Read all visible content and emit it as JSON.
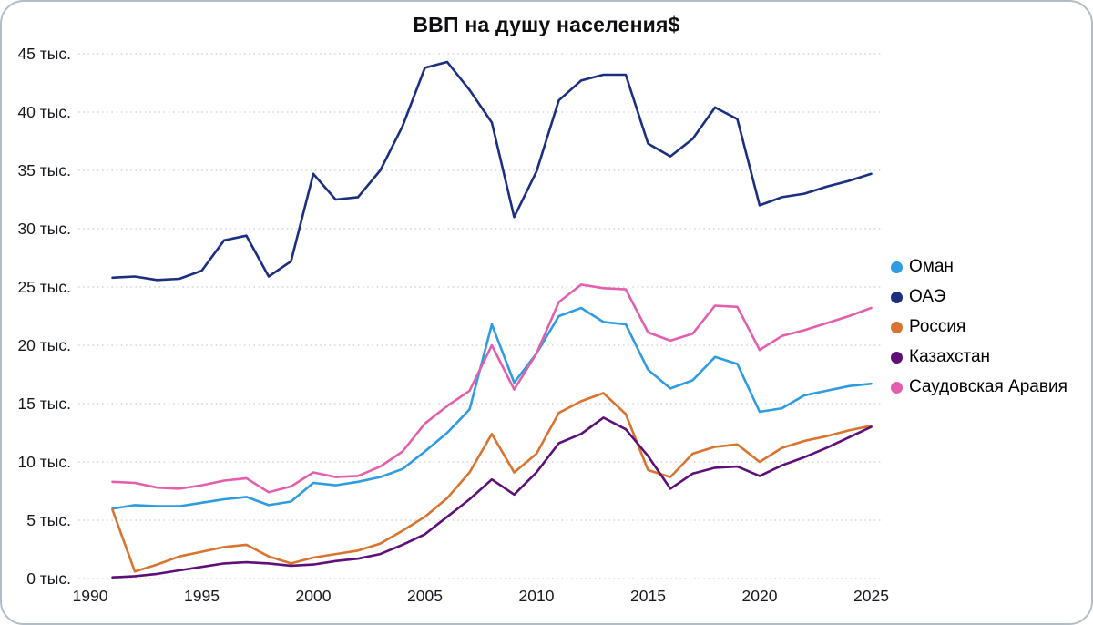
{
  "chart_data": {
    "type": "line",
    "title": "ВВП на душу населения$",
    "xlabel": "",
    "ylabel": "",
    "grid": "horizontal-dotted",
    "legend_position": "right",
    "xlim": [
      1990,
      2025.5
    ],
    "ylim": [
      0,
      45
    ],
    "x": [
      1991,
      1992,
      1993,
      1994,
      1995,
      1996,
      1997,
      1998,
      1999,
      2000,
      2001,
      2002,
      2003,
      2004,
      2005,
      2006,
      2007,
      2008,
      2009,
      2010,
      2011,
      2012,
      2013,
      2014,
      2015,
      2016,
      2017,
      2018,
      2019,
      2020,
      2021,
      2022,
      2023,
      2024,
      2025
    ],
    "xticks": [
      {
        "v": 1990,
        "label": "1990"
      },
      {
        "v": 1995,
        "label": "1995"
      },
      {
        "v": 2000,
        "label": "2000"
      },
      {
        "v": 2005,
        "label": "2005"
      },
      {
        "v": 2010,
        "label": "2010"
      },
      {
        "v": 2015,
        "label": "2015"
      },
      {
        "v": 2020,
        "label": "2020"
      },
      {
        "v": 2025,
        "label": "2025"
      }
    ],
    "yticks": [
      {
        "v": 0,
        "label": "0 тыс."
      },
      {
        "v": 5,
        "label": "5 тыс."
      },
      {
        "v": 10,
        "label": "10 тыс."
      },
      {
        "v": 15,
        "label": "15 тыс."
      },
      {
        "v": 20,
        "label": "20 тыс."
      },
      {
        "v": 25,
        "label": "25 тыс."
      },
      {
        "v": 30,
        "label": "30 тыс."
      },
      {
        "v": 35,
        "label": "35 тыс."
      },
      {
        "v": 40,
        "label": "40 тыс."
      },
      {
        "v": 45,
        "label": "45 тыс."
      }
    ],
    "units": "тыс. $ (thousand USD per capita)",
    "series": [
      {
        "name": "Оман",
        "color": "#2d9ce0",
        "values": [
          6.0,
          6.3,
          6.2,
          6.2,
          6.5,
          6.8,
          7.0,
          6.3,
          6.6,
          8.2,
          8.0,
          8.3,
          8.7,
          9.4,
          10.9,
          12.5,
          14.5,
          21.8,
          16.8,
          19.3,
          22.5,
          23.2,
          22.0,
          21.8,
          17.9,
          16.3,
          17.0,
          19.0,
          18.4,
          14.3,
          14.6,
          15.7,
          16.1,
          16.5,
          16.7
        ]
      },
      {
        "name": "ОАЭ",
        "color": "#1b2f80",
        "values": [
          25.8,
          25.9,
          25.6,
          25.7,
          26.4,
          29.0,
          29.4,
          25.9,
          27.2,
          34.7,
          32.5,
          32.7,
          35.0,
          38.8,
          43.8,
          44.3,
          41.9,
          39.1,
          31.0,
          34.9,
          41.0,
          42.7,
          43.2,
          43.2,
          37.3,
          36.2,
          37.7,
          40.4,
          39.4,
          32.0,
          32.7,
          33.0,
          33.6,
          34.1,
          34.7
        ]
      },
      {
        "name": "Россия",
        "color": "#d9742f",
        "values": [
          5.9,
          0.6,
          1.2,
          1.9,
          2.3,
          2.7,
          2.9,
          1.9,
          1.3,
          1.8,
          2.1,
          2.4,
          3.0,
          4.1,
          5.3,
          6.9,
          9.1,
          12.4,
          9.1,
          10.7,
          14.2,
          15.2,
          15.9,
          14.1,
          9.3,
          8.7,
          10.7,
          11.3,
          11.5,
          10.0,
          11.2,
          11.8,
          12.2,
          12.7,
          13.1
        ]
      },
      {
        "name": "Казахстан",
        "color": "#5e0f78",
        "values": [
          0.1,
          0.2,
          0.4,
          0.7,
          1.0,
          1.3,
          1.4,
          1.3,
          1.1,
          1.2,
          1.5,
          1.7,
          2.1,
          2.9,
          3.8,
          5.3,
          6.8,
          8.5,
          7.2,
          9.1,
          11.6,
          12.4,
          13.8,
          12.8,
          10.5,
          7.7,
          9.0,
          9.5,
          9.6,
          8.8,
          9.7,
          10.4,
          11.2,
          12.1,
          13.0
        ]
      },
      {
        "name": "Саудовская Аравия",
        "color": "#e35fae",
        "values": [
          8.3,
          8.2,
          7.8,
          7.7,
          8.0,
          8.4,
          8.6,
          7.4,
          7.9,
          9.1,
          8.7,
          8.8,
          9.6,
          10.9,
          13.3,
          14.8,
          16.1,
          20.0,
          16.2,
          19.3,
          23.7,
          25.2,
          24.9,
          24.8,
          21.1,
          20.4,
          21.0,
          23.4,
          23.3,
          19.6,
          20.8,
          21.3,
          21.9,
          22.5,
          23.2
        ]
      }
    ]
  }
}
